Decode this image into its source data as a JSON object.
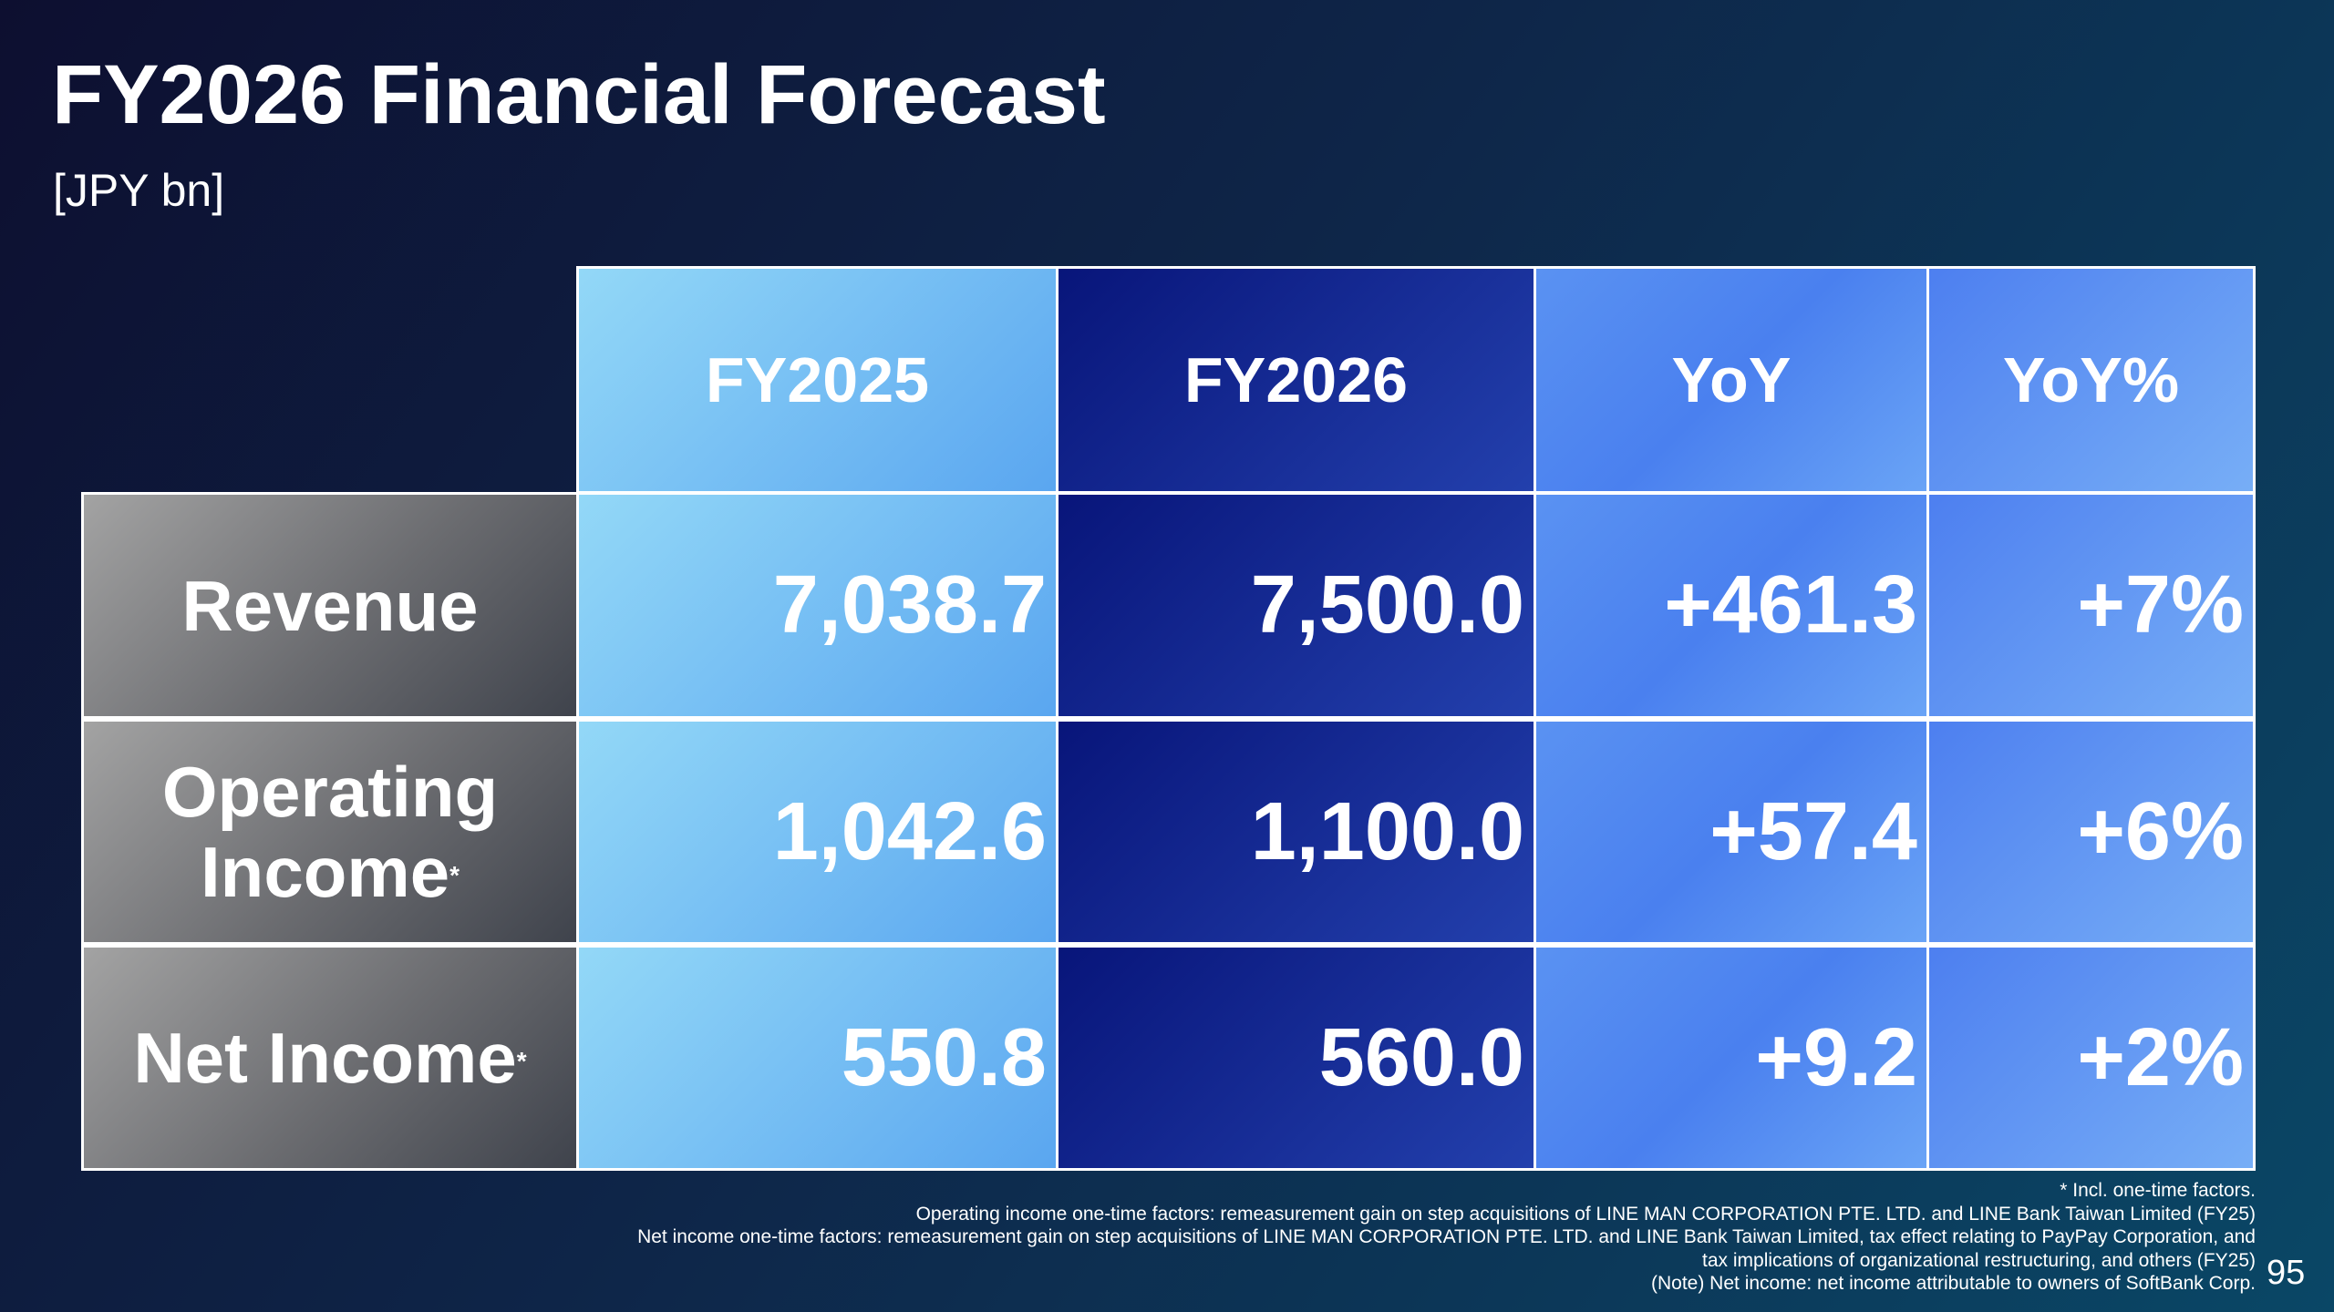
{
  "header": {
    "title": "FY2026 Financial Forecast",
    "unit": "[JPY bn]"
  },
  "table": {
    "columns": [
      "FY2025",
      "FY2026",
      "YoY",
      "YoY%"
    ],
    "rows": [
      {
        "label": "Revenue",
        "mark": null,
        "cells": [
          "7,038.7",
          "7,500.0",
          "+461.3",
          "+7%"
        ]
      },
      {
        "label": "Operating Income",
        "mark": "*",
        "cells": [
          "1,042.6",
          "1,100.0",
          "+57.4",
          "+6%"
        ]
      },
      {
        "label": "Net Income",
        "mark": "*",
        "cells": [
          "550.8",
          "560.0",
          "+9.2",
          "+2%"
        ]
      }
    ]
  },
  "footnotes": [
    "* Incl. one-time factors.",
    "Operating income one-time factors: remeasurement gain on step acquisitions of LINE MAN CORPORATION PTE. LTD. and LINE Bank Taiwan Limited (FY25)",
    "Net income one-time factors: remeasurement gain on step acquisitions of LINE MAN CORPORATION PTE. LTD. and LINE Bank Taiwan Limited, tax effect relating to PayPay Corporation, and",
    "tax implications of organizational restructuring, and others (FY25)",
    "(Note) Net income: net income attributable to owners of SoftBank Corp."
  ],
  "page_number": "95"
}
